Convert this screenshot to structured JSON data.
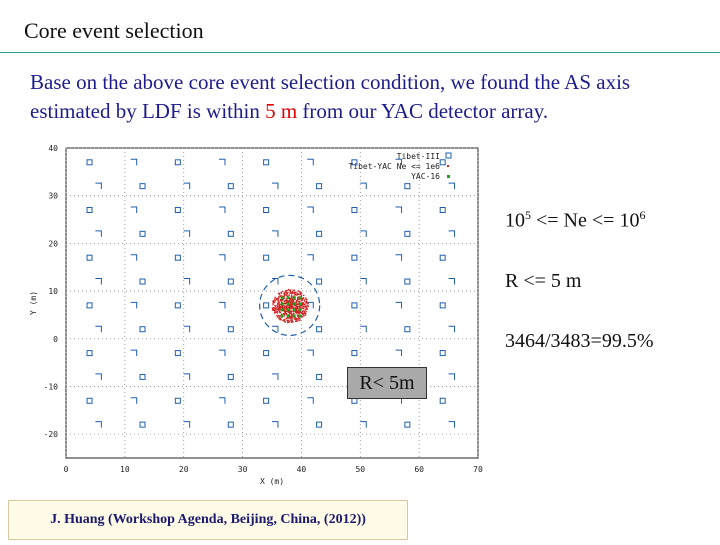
{
  "slide": {
    "title": "Core  event  selection",
    "lead_part1": "Base on the above core event selection condition, we found the  AS axis  estimated by LDF  is within ",
    "lead_highlight": "5 m",
    "lead_part2": " from  our  YAC detector array."
  },
  "plot": {
    "ylabel": "Y (m)",
    "xlabel": "X (m)",
    "legend": [
      "Tibet-III",
      "Tibet-YAC Ne <= 1e6",
      "YAC-16"
    ],
    "xticks": [
      "0",
      "10",
      "20",
      "30",
      "40",
      "50",
      "60",
      "70"
    ],
    "yticks": [
      "40",
      "30",
      "20",
      "10",
      "0",
      "-10",
      "-20"
    ],
    "xlim": [
      0,
      70
    ],
    "ylim": [
      -25,
      40
    ],
    "circle": {
      "center": [
        38,
        7
      ],
      "radius_m": 5
    }
  },
  "notes": {
    "ne_prefix": "10",
    "ne_exp1": "5",
    "ne_mid": " <= Ne <= 10",
    "ne_exp2": "6",
    "r_cut": "R <= 5 m",
    "ratio": "3464/3483=99.5%"
  },
  "callout": {
    "text": "R< 5m"
  },
  "citation": {
    "text": "J. Huang  (Workshop  Agenda,  Beijing,  China, (2012))"
  },
  "colors": {
    "rule": "#2a9ea0",
    "lead": "#1c1c8c",
    "highlight": "#e00000",
    "detector": "#1f5fb0",
    "core": "#d02020",
    "yac": "#20a020"
  }
}
